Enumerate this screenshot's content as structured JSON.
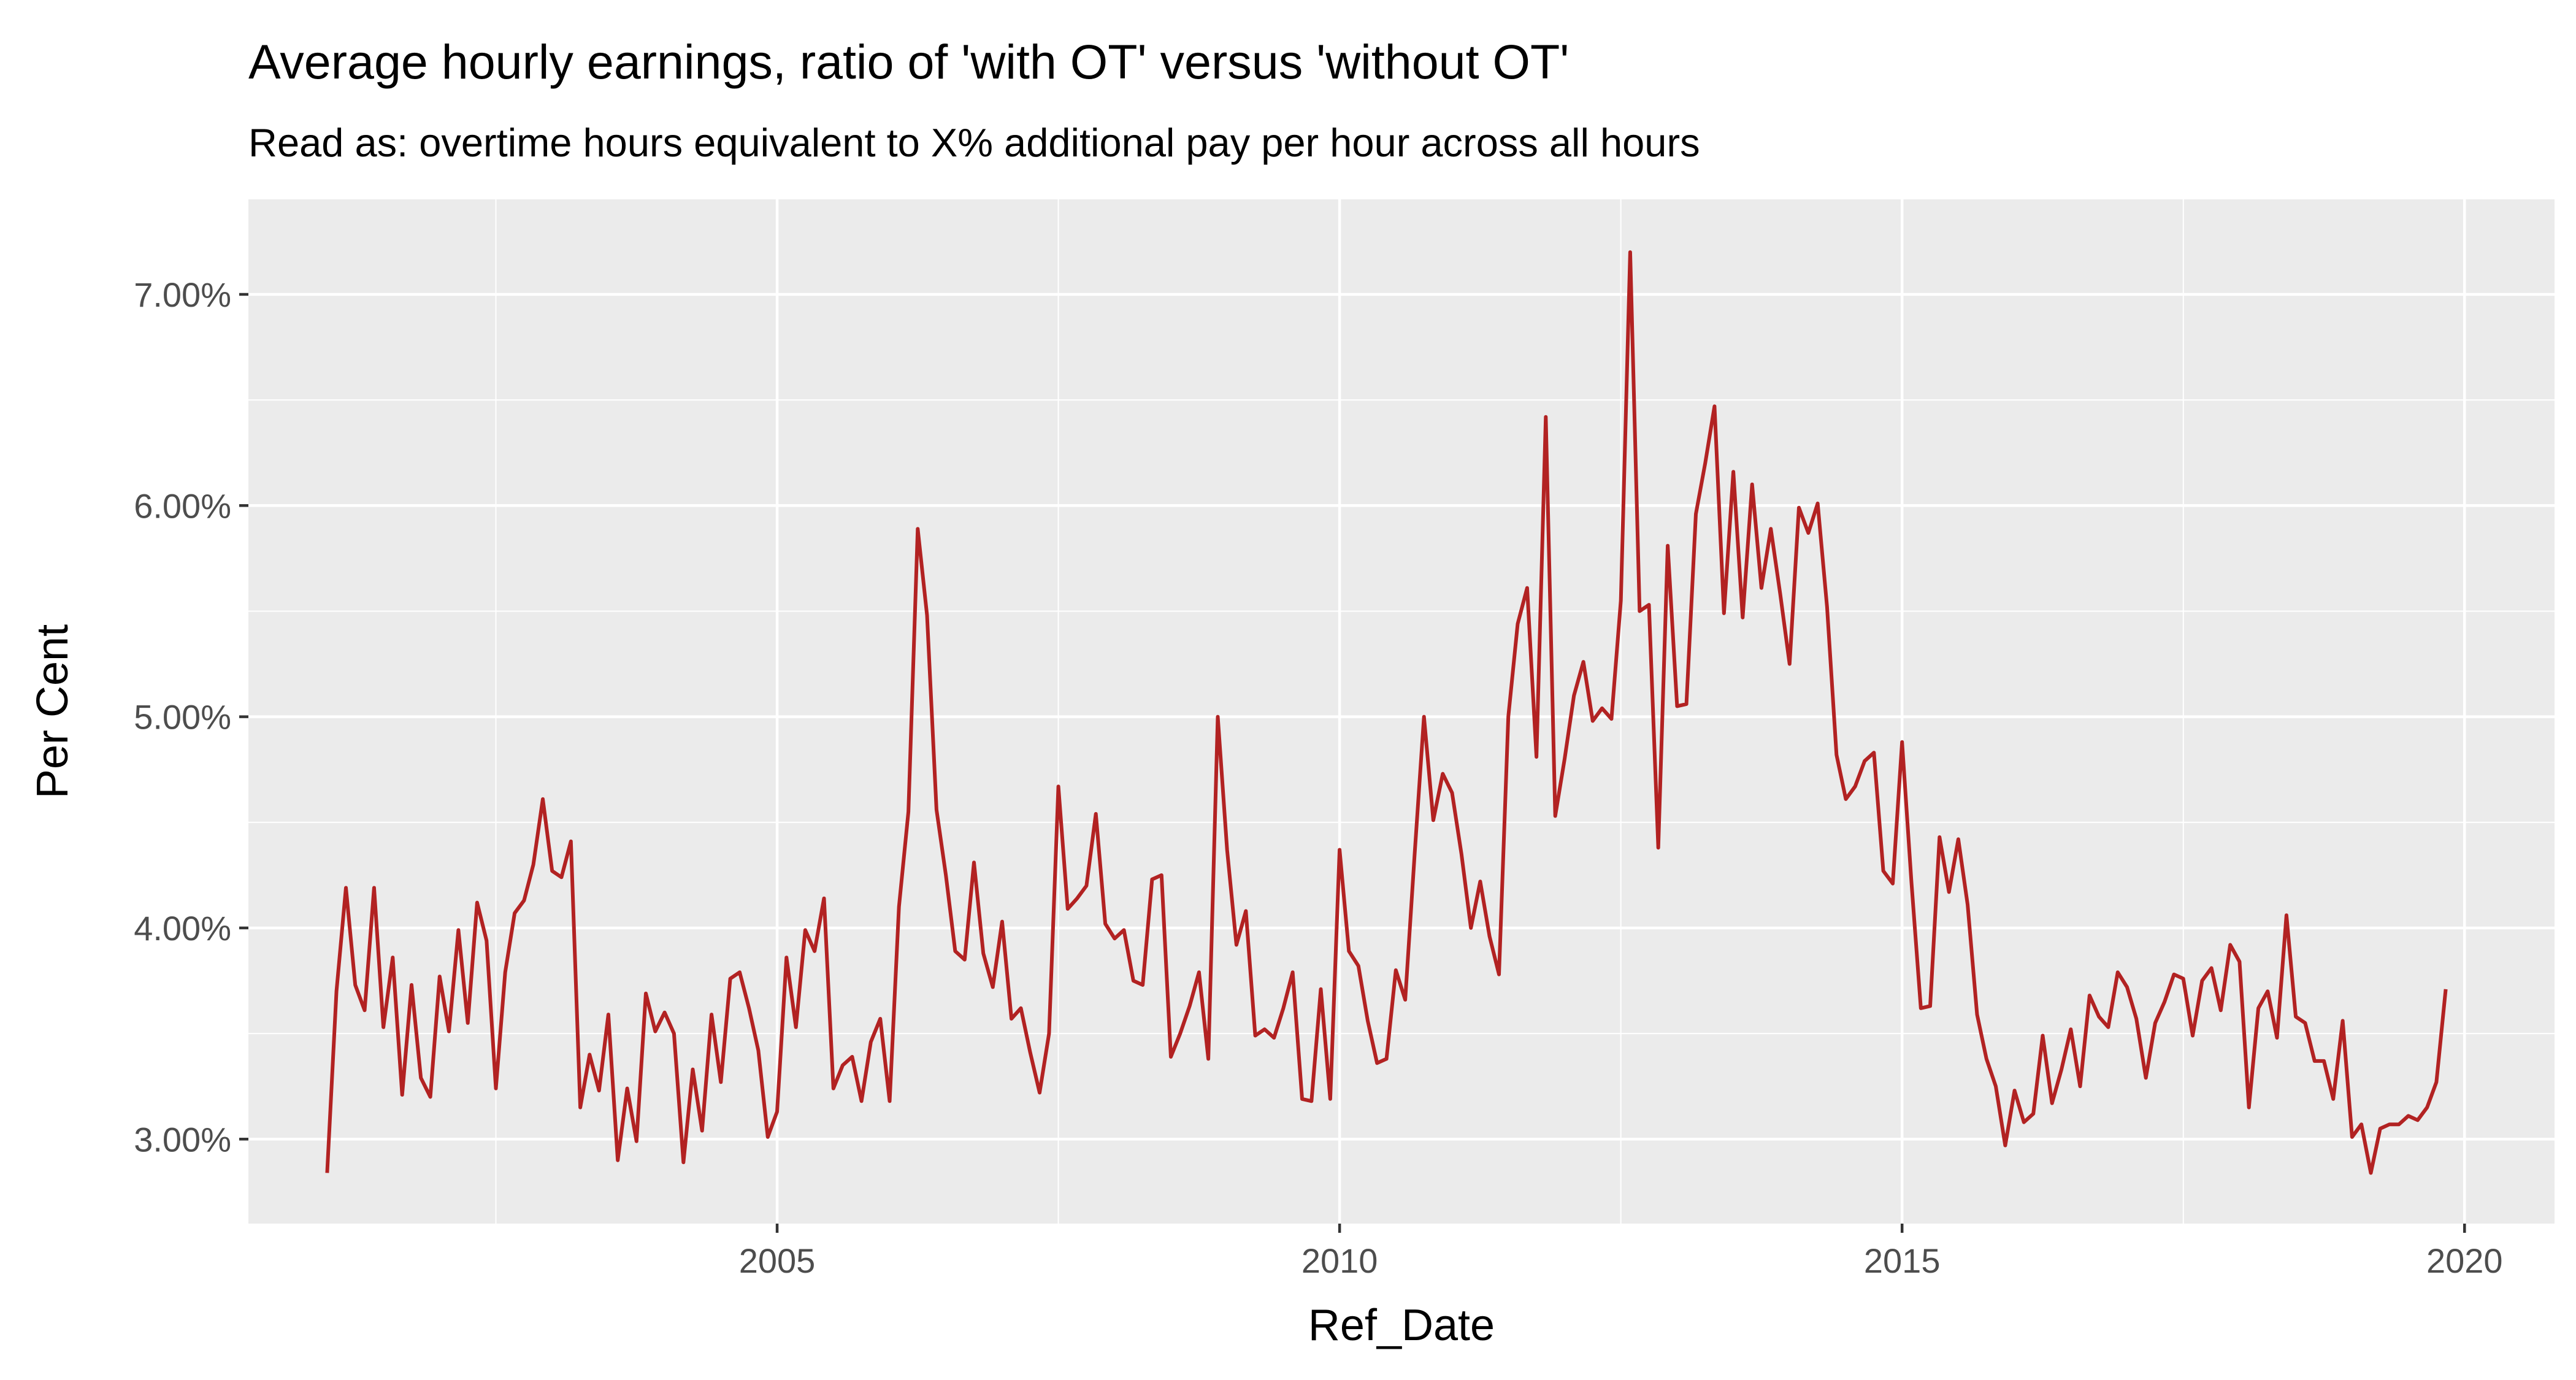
{
  "chart_data": {
    "type": "line",
    "title": "Average hourly earnings, ratio of 'with OT' versus 'without OT'",
    "subtitle": "Read as: overtime hours equivalent to X% additional pay per hour across all hours",
    "xlabel": "Ref_Date",
    "ylabel": "Per Cent",
    "xlim": [
      2000.3,
      2020.8
    ],
    "ylim": [
      2.6,
      7.45
    ],
    "x_ticks": [
      2005,
      2010,
      2015,
      2020
    ],
    "y_ticks": [
      3,
      4,
      5,
      6,
      7
    ],
    "y_tick_labels": [
      "3.00%",
      "4.00%",
      "5.00%",
      "6.00%",
      "7.00%"
    ],
    "grid": true,
    "line_color": "#B22222",
    "panel_color": "#EBEBEB",
    "series": [
      {
        "x": [
          2001.0,
          2001.083,
          2001.167,
          2001.25,
          2001.333,
          2001.417,
          2001.5,
          2001.583,
          2001.667,
          2001.75,
          2001.833,
          2001.917,
          2002.0,
          2002.083,
          2002.167,
          2002.25,
          2002.333,
          2002.417,
          2002.5,
          2002.583,
          2002.667,
          2002.75,
          2002.833,
          2002.917,
          2003.0,
          2003.083,
          2003.167,
          2003.25,
          2003.333,
          2003.417,
          2003.5,
          2003.583,
          2003.667,
          2003.75,
          2003.833,
          2003.917,
          2004.0,
          2004.083,
          2004.167,
          2004.25,
          2004.333,
          2004.417,
          2004.5,
          2004.583,
          2004.667,
          2004.75,
          2004.833,
          2004.917,
          2005.0,
          2005.083,
          2005.167,
          2005.25,
          2005.333,
          2005.417,
          2005.5,
          2005.583,
          2005.667,
          2005.75,
          2005.833,
          2005.917,
          2006.0,
          2006.083,
          2006.167,
          2006.25,
          2006.333,
          2006.417,
          2006.5,
          2006.583,
          2006.667,
          2006.75,
          2006.833,
          2006.917,
          2007.0,
          2007.083,
          2007.167,
          2007.25,
          2007.333,
          2007.417,
          2007.5,
          2007.583,
          2007.667,
          2007.75,
          2007.833,
          2007.917,
          2008.0,
          2008.083,
          2008.167,
          2008.25,
          2008.333,
          2008.417,
          2008.5,
          2008.583,
          2008.667,
          2008.75,
          2008.833,
          2008.917,
          2009.0,
          2009.083,
          2009.167,
          2009.25,
          2009.333,
          2009.417,
          2009.5,
          2009.583,
          2009.667,
          2009.75,
          2009.833,
          2009.917,
          2010.0,
          2010.083,
          2010.167,
          2010.25,
          2010.333,
          2010.417,
          2010.5,
          2010.583,
          2010.667,
          2010.75,
          2010.833,
          2010.917,
          2011.0,
          2011.083,
          2011.167,
          2011.25,
          2011.333,
          2011.417,
          2011.5,
          2011.583,
          2011.667,
          2011.75,
          2011.833,
          2011.917,
          2012.0,
          2012.083,
          2012.167,
          2012.25,
          2012.333,
          2012.417,
          2012.5,
          2012.583,
          2012.667,
          2012.75,
          2012.833,
          2012.917,
          2013.0,
          2013.083,
          2013.167,
          2013.25,
          2013.333,
          2013.417,
          2013.5,
          2013.583,
          2013.667,
          2013.75,
          2013.833,
          2013.917,
          2014.0,
          2014.083,
          2014.167,
          2014.25,
          2014.333,
          2014.417,
          2014.5,
          2014.583,
          2014.667,
          2014.75,
          2014.833,
          2014.917,
          2015.0,
          2015.083,
          2015.167,
          2015.25,
          2015.333,
          2015.417,
          2015.5,
          2015.583,
          2015.667,
          2015.75,
          2015.833,
          2015.917,
          2016.0,
          2016.083,
          2016.167,
          2016.25,
          2016.333,
          2016.417,
          2016.5,
          2016.583,
          2016.667,
          2016.75,
          2016.833,
          2016.917,
          2017.0,
          2017.083,
          2017.167,
          2017.25,
          2017.333,
          2017.417,
          2017.5,
          2017.583,
          2017.667,
          2017.75,
          2017.833,
          2017.917,
          2018.0,
          2018.083,
          2018.167,
          2018.25,
          2018.333,
          2018.417,
          2018.5,
          2018.583,
          2018.667,
          2018.75,
          2018.833,
          2018.917,
          2019.0,
          2019.083,
          2019.167,
          2019.25,
          2019.333,
          2019.417,
          2019.5,
          2019.583,
          2019.667,
          2019.75,
          2019.833
        ],
        "y": [
          2.84,
          3.7,
          4.19,
          3.73,
          3.61,
          4.19,
          3.53,
          3.86,
          3.21,
          3.73,
          3.29,
          3.2,
          3.77,
          3.51,
          3.99,
          3.55,
          4.12,
          3.94,
          3.24,
          3.79,
          4.07,
          4.13,
          4.3,
          4.61,
          4.27,
          4.24,
          4.41,
          3.15,
          3.4,
          3.23,
          3.59,
          2.9,
          3.24,
          2.99,
          3.69,
          3.51,
          3.6,
          3.5,
          2.89,
          3.33,
          3.04,
          3.59,
          3.27,
          3.76,
          3.79,
          3.62,
          3.42,
          3.01,
          3.13,
          3.86,
          3.53,
          3.99,
          3.89,
          4.14,
          3.24,
          3.35,
          3.39,
          3.18,
          3.46,
          3.57,
          3.18,
          4.1,
          4.55,
          5.89,
          5.48,
          4.56,
          4.25,
          3.89,
          3.85,
          4.31,
          3.88,
          3.72,
          4.03,
          3.57,
          3.62,
          3.41,
          3.22,
          3.5,
          4.67,
          4.09,
          4.14,
          4.2,
          4.54,
          4.02,
          3.95,
          3.99,
          3.75,
          3.73,
          4.23,
          4.25,
          3.39,
          3.5,
          3.63,
          3.79,
          3.38,
          5.0,
          4.37,
          3.92,
          4.08,
          3.49,
          3.52,
          3.48,
          3.62,
          3.79,
          3.19,
          3.18,
          3.71,
          3.19,
          4.37,
          3.89,
          3.82,
          3.56,
          3.36,
          3.38,
          3.8,
          3.66,
          4.35,
          5.0,
          4.51,
          4.73,
          4.64,
          4.35,
          4.0,
          4.22,
          3.96,
          3.78,
          5.0,
          5.44,
          5.61,
          4.81,
          6.42,
          4.53,
          4.8,
          5.1,
          5.26,
          4.98,
          5.04,
          4.99,
          5.55,
          7.2,
          5.5,
          5.53,
          4.38,
          5.81,
          5.05,
          5.06,
          5.96,
          6.2,
          6.47,
          5.49,
          6.16,
          5.47,
          6.1,
          5.61,
          5.89,
          5.58,
          5.25,
          5.99,
          5.87,
          6.01,
          5.52,
          4.82,
          4.61,
          4.67,
          4.79,
          4.83,
          4.27,
          4.21,
          4.88,
          4.22,
          3.62,
          3.63,
          4.43,
          4.17,
          4.42,
          4.11,
          3.59,
          3.38,
          3.25,
          2.97,
          3.23,
          3.08,
          3.12,
          3.49,
          3.17,
          3.33,
          3.52,
          3.25,
          3.68,
          3.58,
          3.53,
          3.79,
          3.72,
          3.57,
          3.29,
          3.55,
          3.65,
          3.78,
          3.76,
          3.49,
          3.75,
          3.81,
          3.61,
          3.92,
          3.84,
          3.15,
          3.62,
          3.7,
          3.48,
          4.06,
          3.58,
          3.55,
          3.37,
          3.37,
          3.19,
          3.56,
          3.01,
          3.07,
          2.84,
          3.05,
          3.07,
          3.07,
          3.11,
          3.09,
          3.15,
          3.27,
          3.71
        ]
      }
    ]
  }
}
